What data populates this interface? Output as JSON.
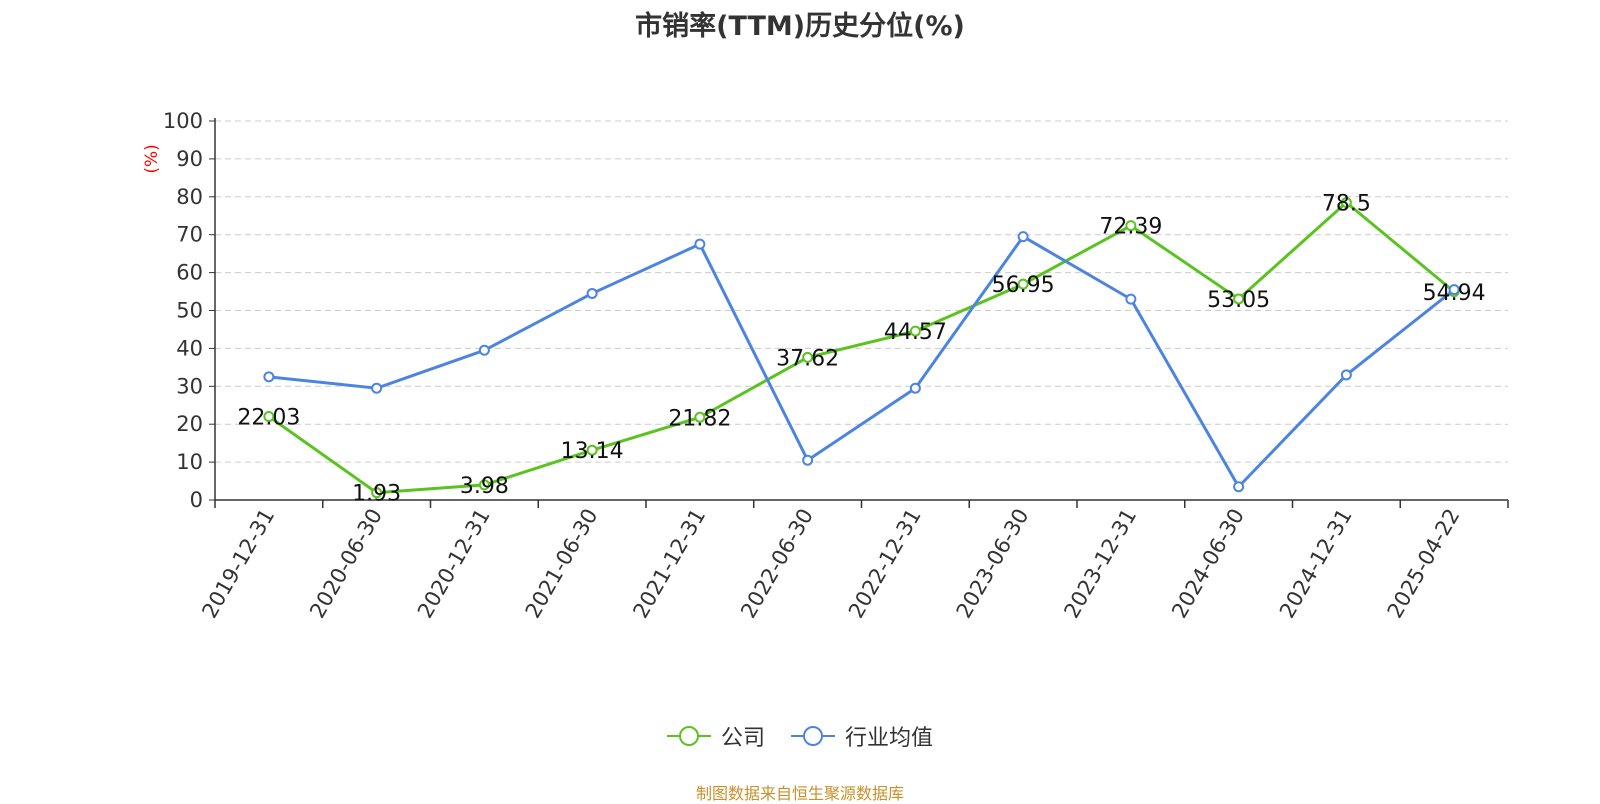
{
  "chart_data": {
    "type": "line",
    "title": "市销率(TTM)历史分位(%)",
    "ylabel": "(%)",
    "xlabel": "",
    "ylim": [
      0,
      100
    ],
    "yticks": [
      "0",
      "10",
      "20",
      "30",
      "40",
      "50",
      "60",
      "70",
      "80",
      "90",
      "100"
    ],
    "grid": true,
    "legend_position": "bottom-center",
    "categories": [
      "2019-12-31",
      "2020-06-30",
      "2020-12-31",
      "2021-06-30",
      "2021-12-31",
      "2022-06-30",
      "2022-12-31",
      "2023-06-30",
      "2023-12-31",
      "2024-06-30",
      "2024-12-31",
      "2025-04-22"
    ],
    "series": [
      {
        "name": "公司",
        "color": "#5ac320",
        "values": [
          22.03,
          1.93,
          3.98,
          13.14,
          21.82,
          37.62,
          44.57,
          56.95,
          72.39,
          53.05,
          78.5,
          54.94
        ],
        "labels": [
          "22.03",
          "1.93",
          "3.98",
          "13.14",
          "21.82",
          "37.62",
          "44.57",
          "56.95",
          "72.39",
          "53.05",
          "78.5",
          "54.94"
        ]
      },
      {
        "name": "行业均值",
        "color": "#4c84e0",
        "values": [
          32.5,
          29.5,
          39.5,
          54.5,
          67.5,
          10.5,
          29.5,
          69.5,
          53.0,
          3.5,
          33.0,
          55.5
        ]
      }
    ]
  },
  "colors": {
    "axis": "#333333",
    "grid": "#cccccc",
    "ylabel": "#ff0000",
    "source": "#c8902a"
  },
  "footer": {
    "source": "制图数据来自恒生聚源数据库"
  }
}
